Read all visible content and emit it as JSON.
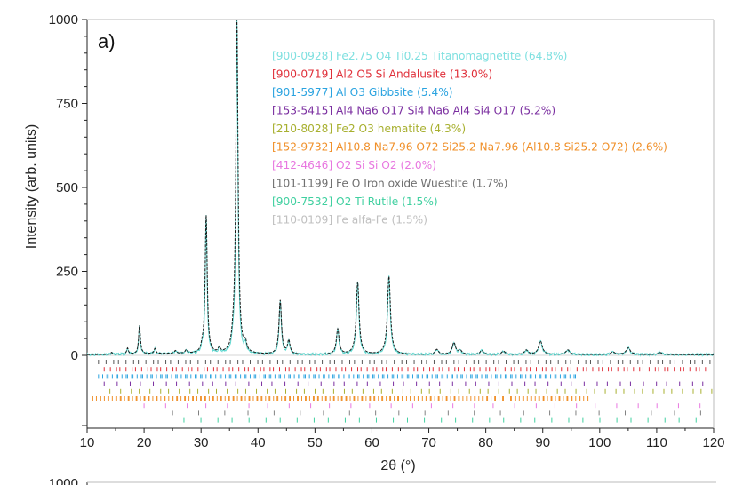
{
  "chart_data": [
    {
      "type": "line",
      "panel_label": "a)",
      "xlabel": "2θ (°)",
      "ylabel": "Intensity (arb. units)",
      "xlim": [
        10,
        120
      ],
      "ylim": [
        0,
        1000
      ],
      "x_ticks": [
        10,
        20,
        30,
        40,
        50,
        60,
        70,
        80,
        90,
        100,
        110,
        120
      ],
      "y_ticks": [
        0,
        250,
        500,
        750,
        1000
      ],
      "grid": false,
      "legend_position": "top-right",
      "series": [
        {
          "name": "",
          "color": "#1a1a1a",
          "peaks": [
            {
              "x": 14.3,
              "y": 6
            },
            {
              "x": 17.1,
              "y": 18
            },
            {
              "x": 19.2,
              "y": 85
            },
            {
              "x": 21.9,
              "y": 15
            },
            {
              "x": 25.5,
              "y": 8
            },
            {
              "x": 27.4,
              "y": 10
            },
            {
              "x": 30.2,
              "y": 13
            },
            {
              "x": 30.9,
              "y": 410
            },
            {
              "x": 33.2,
              "y": 14
            },
            {
              "x": 35.6,
              "y": 20
            },
            {
              "x": 36.3,
              "y": 1000
            },
            {
              "x": 37.8,
              "y": 25
            },
            {
              "x": 43.9,
              "y": 160
            },
            {
              "x": 45.4,
              "y": 40
            },
            {
              "x": 54.0,
              "y": 75
            },
            {
              "x": 57.5,
              "y": 215
            },
            {
              "x": 63.0,
              "y": 232
            },
            {
              "x": 71.4,
              "y": 15
            },
            {
              "x": 74.4,
              "y": 35
            },
            {
              "x": 75.5,
              "y": 12
            },
            {
              "x": 79.3,
              "y": 12
            },
            {
              "x": 83.1,
              "y": 10
            },
            {
              "x": 87.1,
              "y": 13
            },
            {
              "x": 89.6,
              "y": 40
            },
            {
              "x": 94.4,
              "y": 14
            },
            {
              "x": 102.3,
              "y": 8
            },
            {
              "x": 105.0,
              "y": 20
            },
            {
              "x": 110.6,
              "y": 6
            }
          ]
        }
      ],
      "phase_ticks": [
        {
          "color": "#555555",
          "start": 12,
          "end": 120,
          "step": 1.15
        },
        {
          "color": "#e0303a",
          "start": 13,
          "end": 119,
          "step": 0.9
        },
        {
          "color": "#2aa3e0",
          "start": 12,
          "end": 96,
          "step": 0.55
        },
        {
          "color": "#7b2fa0",
          "start": 13,
          "end": 118,
          "step": 2.1
        },
        {
          "color": "#a8b030",
          "start": 14,
          "end": 120,
          "step": 1.7
        },
        {
          "color": "#f0902a",
          "start": 11,
          "end": 98,
          "step": 0.45
        },
        {
          "color": "#e878e0",
          "start": 20,
          "end": 118,
          "step": 3.6
        },
        {
          "color": "#808080",
          "start": 25,
          "end": 118,
          "step": 4.4
        },
        {
          "color": "#40d0a0",
          "start": 27,
          "end": 118,
          "step": 2.8
        }
      ],
      "legend": [
        {
          "text": "[900-0928] Fe2.75 O4 Ti0.25  Titanomagnetite (64.8%)",
          "color": "#7fe0e0"
        },
        {
          "text": "[900-0719] Al2 O5 Si  Andalusite (13.0%)",
          "color": "#e0303a"
        },
        {
          "text": "[901-5977] Al O3  Gibbsite (5.4%)",
          "color": "#2aa3e0"
        },
        {
          "text": "[153-5415] Al4 Na6 O17 Si4 Na6 Al4 Si4 O17 (5.2%)",
          "color": "#7b2fa0"
        },
        {
          "text": "[210-8028] Fe2 O3 hematite (4.3%)",
          "color": "#a8b030"
        },
        {
          "text": "[152-9732] Al10.8 Na7.96 O72 Si25.2 Na7.96 (Al10.8 Si25.2 O72) (2.6%)",
          "color": "#f0902a"
        },
        {
          "text": "[412-4646] O2 Si Si O2 (2.0%)",
          "color": "#e878e0"
        },
        {
          "text": "[101-1199] Fe O Iron oxide Wuestite (1.7%)",
          "color": "#707070"
        },
        {
          "text": "[900-7532] O2 Ti  Rutile (1.5%)",
          "color": "#40d0a0"
        },
        {
          "text": "[110-0109] Fe alfa-Fe (1.5%)",
          "color": "#c0c0c0"
        }
      ]
    },
    {
      "type": "line",
      "y_ticks": [
        1000
      ]
    }
  ]
}
